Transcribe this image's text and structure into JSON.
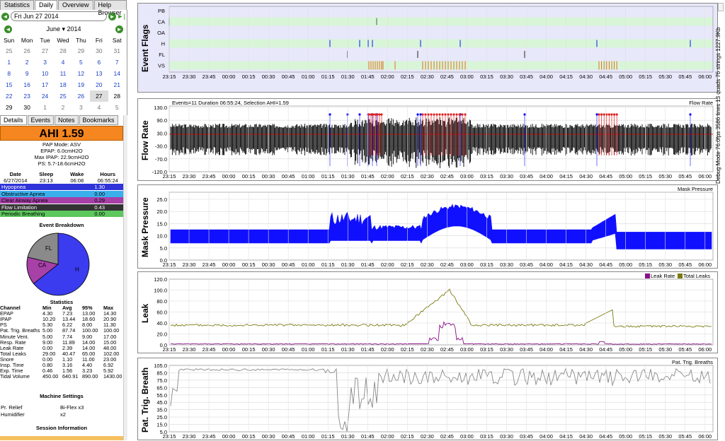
{
  "top_tabs": [
    "Statistics",
    "Daily",
    "Overview",
    "Help Browser"
  ],
  "date_nav": {
    "prev_icon": "◄",
    "date": "Fri Jun 27 2014",
    "next_icon": "►",
    "last_icon": "►|"
  },
  "calendar": {
    "month": "June",
    "year": "2014",
    "weekdays": [
      "Sun",
      "Mon",
      "Tue",
      "Wed",
      "Thu",
      "Fri",
      "Sat"
    ],
    "weeks": [
      [
        "25",
        "26",
        "27",
        "28",
        "29",
        "30",
        "31"
      ],
      [
        "1",
        "2",
        "3",
        "4",
        "5",
        "6",
        "7"
      ],
      [
        "8",
        "9",
        "10",
        "11",
        "12",
        "13",
        "14"
      ],
      [
        "15",
        "16",
        "17",
        "18",
        "19",
        "20",
        "21"
      ],
      [
        "22",
        "23",
        "24",
        "25",
        "26",
        "27",
        "28"
      ],
      [
        "29",
        "30",
        "1",
        "2",
        "3",
        "4",
        "5"
      ]
    ]
  },
  "panel_tabs": [
    "Details",
    "Events",
    "Notes",
    "Bookmarks"
  ],
  "ahi": "AHI 1.59",
  "mode_info": [
    "PAP Mode: ASV",
    "EPAP: 6.0cmH2O",
    "Max IPAP: 22.9cmH2O",
    "PS: 5.7-18.6cmH2O"
  ],
  "session": {
    "headers": [
      "Date",
      "Sleep",
      "Wake",
      "Hours"
    ],
    "values": [
      "6/27/2014",
      "23:13",
      "06:08",
      "06:55:24"
    ]
  },
  "event_rows": [
    {
      "label": "Hypopnea",
      "value": "1.30",
      "color": "#2e34d8",
      "text": "#fff"
    },
    {
      "label": "Obstructive Apnea",
      "value": "0.00",
      "color": "#39b0ec",
      "text": "#000"
    },
    {
      "label": "Clear Airway Apnea",
      "value": "0.29",
      "color": "#a740a7",
      "text": "#000"
    },
    {
      "label": "Flow Limitation",
      "value": "0.43",
      "color": "#333333",
      "text": "#fff"
    },
    {
      "label": "Periodic Breathing",
      "value": "0.00",
      "color": "#5dc85d",
      "text": "#000"
    }
  ],
  "breakdown_title": "Event Breakdown",
  "pie_labels": {
    "fl": "FL",
    "ca": "CA",
    "h": "H"
  },
  "pie_values": {
    "H": 1.3,
    "CA": 0.29,
    "FL": 0.43
  },
  "stats": {
    "title": "Statistics",
    "headers": [
      "Channel",
      "Min",
      "Avg",
      "95%",
      "Max"
    ],
    "rows": [
      [
        "EPAP",
        "4.30",
        "7.23",
        "13.00",
        "14.30"
      ],
      [
        "IPAP",
        "10.20",
        "13.44",
        "18.60",
        "20.90"
      ],
      [
        "PS",
        "5.30",
        "6.22",
        "8.00",
        "11.30"
      ],
      [
        "Pat. Trig. Breaths",
        "5.00",
        "87.74",
        "100.00",
        "100.00"
      ],
      [
        "Minute Vent.",
        "5.00",
        "7.74",
        "9.00",
        "17.00"
      ],
      [
        "Resp. Rate",
        "9.00",
        "11.89",
        "14.00",
        "15.00"
      ],
      [
        "Leak Rate",
        "0.00",
        "2.39",
        "14.00",
        "48.00"
      ],
      [
        "Total Leaks",
        "29.00",
        "40.47",
        "65.00",
        "102.00"
      ],
      [
        "Snore",
        "0.00",
        "1.10",
        "11.00",
        "23.00"
      ],
      [
        "Insp. Time",
        "0.80",
        "3.16",
        "4.40",
        "6.92"
      ],
      [
        "Exp. Time",
        "0.46",
        "1.56",
        "3.23",
        "5.92"
      ],
      [
        "Tidal Volume",
        "450.00",
        "640.91",
        "890.00",
        "1430.00"
      ]
    ]
  },
  "machine": {
    "title": "Machine Settings",
    "rows": [
      [
        "Pr. Relief",
        "Bi-Flex x3"
      ],
      [
        "Humidifier",
        "x2"
      ]
    ]
  },
  "session_info_title": "Session Information",
  "time_ticks": [
    "23:15",
    "23:30",
    "23:45",
    "00:00",
    "00:15",
    "00:30",
    "00:45",
    "01:00",
    "01:15",
    "01:30",
    "01:45",
    "02:00",
    "02:15",
    "02:30",
    "02:45",
    "03:00",
    "03:15",
    "03:30",
    "03:45",
    "04:00",
    "04:15",
    "04:30",
    "04:45",
    "05:00",
    "05:15",
    "05:30",
    "05:45",
    "06:00"
  ],
  "side_debug": "Debug Mode 76.0fps 3586 lines 13 quads 76 strings 1227.9Kb",
  "graphs": {
    "event_flags": {
      "title": "Event Flags",
      "rows": [
        "PB",
        "CA",
        "OA",
        "H",
        "FL",
        "VS"
      ]
    },
    "flow_rate": {
      "title": "Flow Rate",
      "header": "Events=11 Duration 06:55:24, Selection AHI=1.59",
      "legend": "Flow Rate",
      "yticks": [
        "130.0",
        "90.0",
        "30.0",
        "-30.0",
        "-70.0",
        "-120.0"
      ]
    },
    "mask_pressure": {
      "title": "Mask Pressure",
      "legend": "Mask Pressure",
      "yticks": [
        "25.0",
        "20.0",
        "15.0",
        "10.0",
        "5.0",
        "0.0"
      ]
    },
    "leak": {
      "title": "Leak",
      "legend1": "Leak Rate",
      "legend2": "Total Leaks",
      "yticks": [
        "120.0",
        "100.0",
        "80.0",
        "60.0",
        "40.0",
        "20.0",
        "0.0"
      ]
    },
    "ptb": {
      "title": "Pat. Trig. Breath",
      "legend": "Pat. Trig. Breaths",
      "yticks": [
        "105.0",
        "85.0",
        "75.0",
        "65.0",
        "55.0",
        "45.0",
        "35.0",
        "25.0",
        "15.0",
        "5.0"
      ]
    }
  },
  "colors": {
    "ahi": "#f6861f",
    "flags_bg": "#e6e6fb",
    "flag_row": "#d8f5d8",
    "flow": "#000000",
    "pressure": "#1010ff",
    "leak_total": "#7a7a10",
    "leak_rate": "#8a108a",
    "ptb": "#888888"
  }
}
